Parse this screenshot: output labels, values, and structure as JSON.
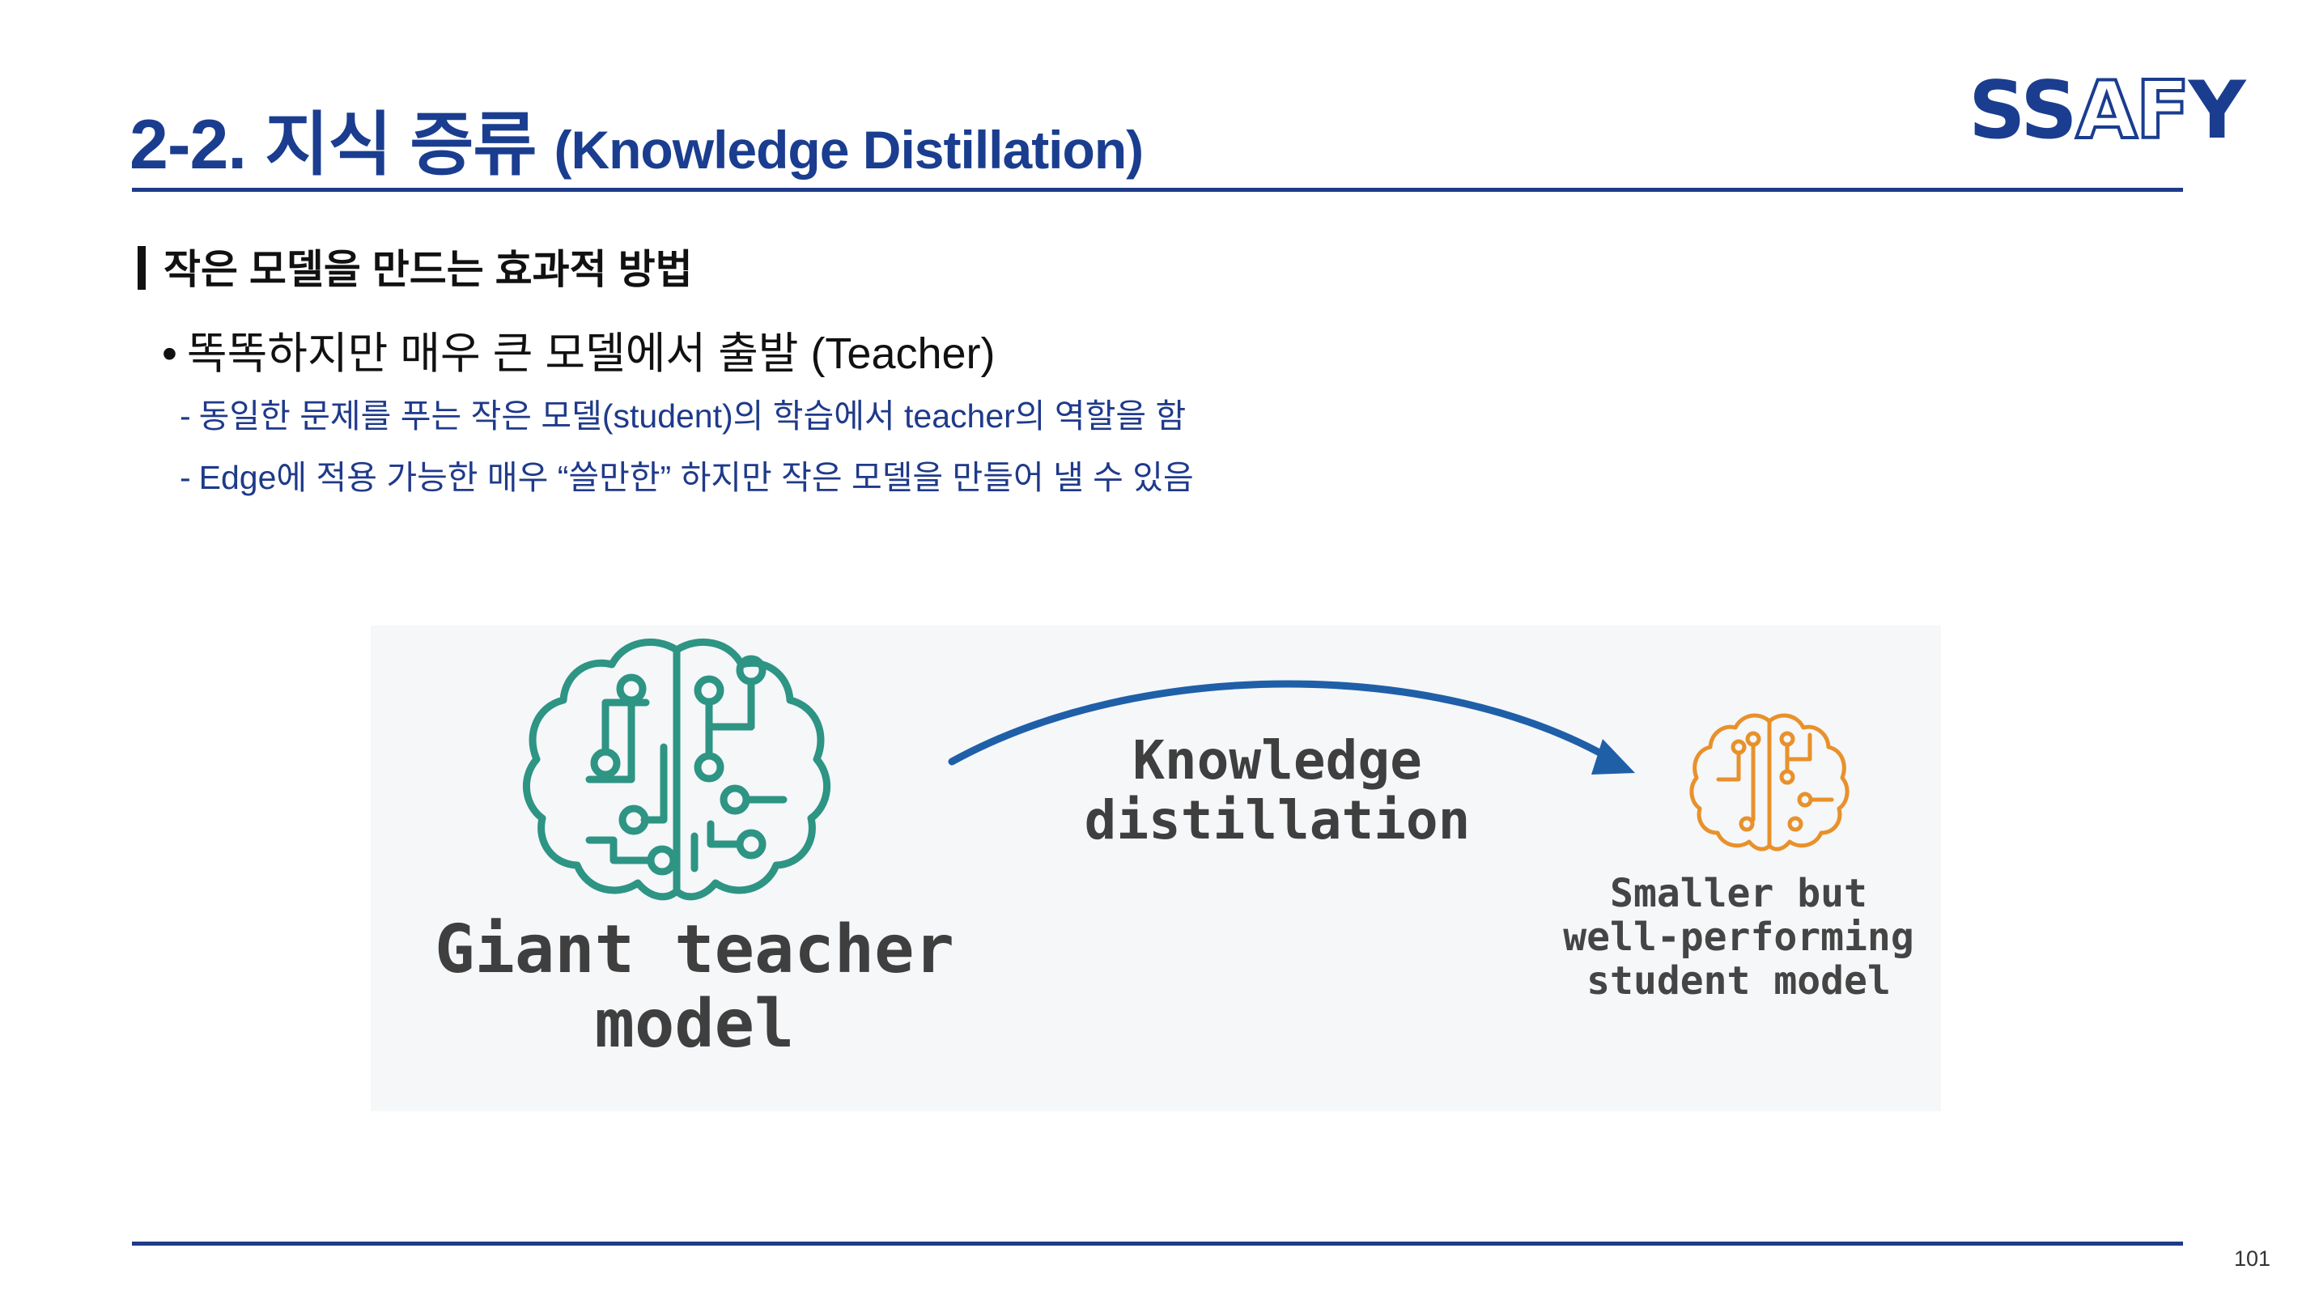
{
  "slide": {
    "title_main": "2-2. 지식 증류",
    "title_sub": "(Knowledge Distillation)",
    "logo": {
      "text_a": "SS",
      "text_b": "AF",
      "text_c": "Y"
    },
    "section_heading": "작은 모델을 만드는 효과적 방법",
    "bullet": "똑똑하지만 매우 큰 모델에서 출발 (Teacher)",
    "bullet_marker": "•",
    "dash_marker": "-",
    "dashes": [
      "동일한 문제를 푸는 작은 모델(student)의 학습에서 teacher의 역할을 함",
      "Edge에 적용 가능한 매우 “쓸만한” 하지만 작은 모델을 만들어 낼 수 있음"
    ],
    "page_number": "101"
  },
  "figure": {
    "teacher_label": [
      "Giant teacher",
      "model"
    ],
    "arrow_label": [
      "Knowledge",
      "distillation"
    ],
    "student_label": [
      "Smaller but",
      "well-performing",
      "student model"
    ],
    "icons": {
      "teacher": "circuit-brain-icon",
      "student": "circuit-brain-icon",
      "arrow": "curved-arrow-icon"
    }
  },
  "colors": {
    "brand_blue": "#1a3d8f",
    "teacher_brain": "#2e9484",
    "student_brain": "#e8912b",
    "arrow": "#1f5fa8",
    "figure_background": "#f5f7f9"
  }
}
